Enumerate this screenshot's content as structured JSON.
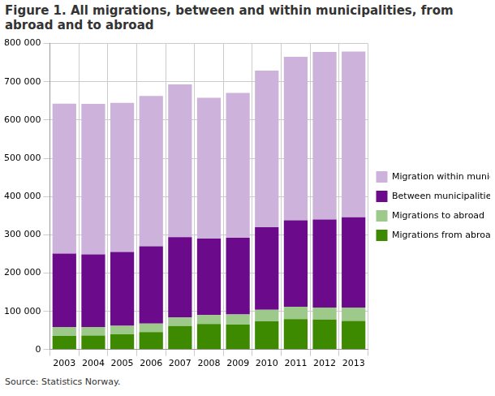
{
  "chart_data": {
    "type": "bar",
    "title": "Figure 1. All migrations, between and within municipalities, from abroad and to abroad",
    "source": "Source: Statistics Norway.",
    "categories": [
      "2003",
      "2004",
      "2005",
      "2006",
      "2007",
      "2008",
      "2009",
      "2010",
      "2011",
      "2012",
      "2013"
    ],
    "series": [
      {
        "name": "Migrations from abroad",
        "color": "#3d8a00",
        "values": [
          35500,
          36500,
          40000,
          45500,
          61800,
          66900,
          65100,
          73900,
          79500,
          78600,
          75000
        ]
      },
      {
        "name": "Migrations to abroad",
        "color": "#9dc98a",
        "values": [
          23500,
          22500,
          22000,
          22500,
          22200,
          23100,
          26900,
          30100,
          32500,
          31400,
          35000
        ]
      },
      {
        "name": "Between municipalities",
        "color": "#6b0a8b",
        "values": [
          192000,
          190000,
          193000,
          202000,
          210000,
          200000,
          200000,
          216000,
          226000,
          230000,
          236000
        ]
      },
      {
        "name": "Migration within municipality",
        "color": "#cdb3db",
        "values": [
          392000,
          393000,
          390000,
          393000,
          399000,
          368000,
          379000,
          409000,
          427000,
          438000,
          433000
        ]
      }
    ],
    "stacked": true,
    "ylim": [
      0,
      800000
    ],
    "yticks": [
      0,
      {
        "value": 100000,
        "label": "100 000"
      },
      {
        "value": 200000,
        "label": "200 000"
      },
      {
        "value": 300000,
        "label": "300 000"
      },
      {
        "value": 400000,
        "label": "400 000"
      },
      {
        "value": 500000,
        "label": "500 000"
      },
      {
        "value": 600000,
        "label": "600 000"
      },
      {
        "value": 700000,
        "label": "700 000"
      },
      {
        "value": 800000,
        "label": "800 000"
      }
    ],
    "grid": true,
    "legend": "right"
  }
}
